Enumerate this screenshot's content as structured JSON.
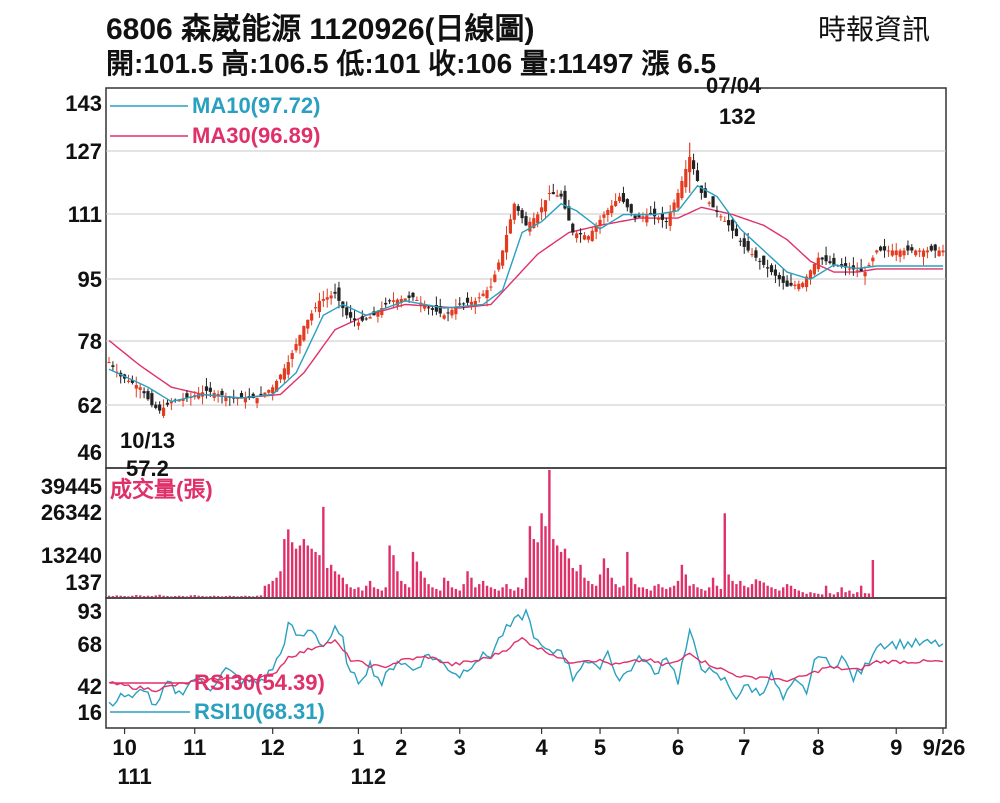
{
  "header": {
    "title": "6806  森崴能源 1120926(日線圖)",
    "source": "時報資訊",
    "ohlc": "開:101.5 高:106.5 低:101 收:106 量:11497 漲 6.5"
  },
  "colors": {
    "ma10": "#2aa0c0",
    "ma30": "#e0306a",
    "up": "#e33b1f",
    "down": "#222222",
    "volume": "#e0306a",
    "rsi10": "#2aa0c0",
    "rsi30": "#e0306a",
    "grid": "#c8c8c8"
  },
  "chart_data": [
    {
      "type": "candlestick",
      "legend": [
        {
          "name": "MA10(97.72)",
          "key": "ma10"
        },
        {
          "name": "MA30(96.89)",
          "key": "ma30"
        }
      ],
      "y_ticks": [
        "143",
        "127",
        "111",
        "95",
        "78",
        "62",
        "46"
      ],
      "ylim": [
        46,
        143
      ],
      "annotations": {
        "high_date": "07/04",
        "high_value": "132",
        "low_date": "10/13",
        "low_value": "57.2"
      },
      "anchors": [
        [
          0,
          71
        ],
        [
          3,
          67
        ],
        [
          8,
          64
        ],
        [
          11,
          59
        ],
        [
          13,
          57.5
        ],
        [
          16,
          60
        ],
        [
          20,
          61
        ],
        [
          25,
          63
        ],
        [
          32,
          61
        ],
        [
          38,
          61
        ],
        [
          42,
          64
        ],
        [
          46,
          71
        ],
        [
          50,
          81
        ],
        [
          54,
          88
        ],
        [
          58,
          90
        ],
        [
          61,
          84
        ],
        [
          64,
          82
        ],
        [
          68,
          84
        ],
        [
          72,
          88
        ],
        [
          78,
          89
        ],
        [
          82,
          86
        ],
        [
          86,
          84
        ],
        [
          90,
          87
        ],
        [
          94,
          88
        ],
        [
          98,
          92
        ],
        [
          101,
          102
        ],
        [
          104,
          115
        ],
        [
          107,
          109
        ],
        [
          110,
          112
        ],
        [
          113,
          118
        ],
        [
          116,
          117
        ],
        [
          119,
          107
        ],
        [
          123,
          106
        ],
        [
          127,
          112
        ],
        [
          131,
          117
        ],
        [
          135,
          111
        ],
        [
          139,
          112
        ],
        [
          143,
          110
        ],
        [
          146,
          118
        ],
        [
          149,
          128
        ],
        [
          152,
          118
        ],
        [
          155,
          114
        ],
        [
          159,
          109
        ],
        [
          163,
          103
        ],
        [
          166,
          100
        ],
        [
          170,
          96
        ],
        [
          174,
          92
        ],
        [
          178,
          93
        ],
        [
          182,
          100
        ],
        [
          186,
          98
        ],
        [
          190,
          97
        ],
        [
          194,
          96
        ],
        [
          197,
          102
        ]
      ],
      "ma10_anchors": [
        [
          0,
          69
        ],
        [
          10,
          64
        ],
        [
          16,
          60
        ],
        [
          24,
          62
        ],
        [
          34,
          61
        ],
        [
          42,
          62
        ],
        [
          48,
          68
        ],
        [
          55,
          84
        ],
        [
          60,
          87
        ],
        [
          66,
          84
        ],
        [
          76,
          88
        ],
        [
          86,
          86
        ],
        [
          96,
          87
        ],
        [
          101,
          91
        ],
        [
          106,
          107
        ],
        [
          111,
          110
        ],
        [
          116,
          115
        ],
        [
          120,
          113
        ],
        [
          126,
          108
        ],
        [
          132,
          112
        ],
        [
          140,
          112
        ],
        [
          146,
          113
        ],
        [
          151,
          120
        ],
        [
          156,
          117
        ],
        [
          162,
          108
        ],
        [
          168,
          102
        ],
        [
          174,
          96
        ],
        [
          180,
          94
        ],
        [
          186,
          98
        ],
        [
          192,
          97
        ],
        [
          197,
          97.7
        ]
      ],
      "ma30_anchors": [
        [
          0,
          77
        ],
        [
          8,
          70
        ],
        [
          16,
          64
        ],
        [
          24,
          62
        ],
        [
          34,
          61
        ],
        [
          44,
          62
        ],
        [
          50,
          68
        ],
        [
          58,
          80
        ],
        [
          66,
          84
        ],
        [
          76,
          87
        ],
        [
          90,
          86
        ],
        [
          98,
          87
        ],
        [
          104,
          94
        ],
        [
          110,
          101
        ],
        [
          118,
          107
        ],
        [
          126,
          109
        ],
        [
          136,
          111
        ],
        [
          146,
          111
        ],
        [
          152,
          114
        ],
        [
          160,
          112
        ],
        [
          168,
          109
        ],
        [
          174,
          105
        ],
        [
          180,
          99
        ],
        [
          186,
          96
        ],
        [
          192,
          96
        ],
        [
          197,
          96.9
        ]
      ]
    },
    {
      "type": "bar",
      "legend": [
        {
          "name": "成交量(張)",
          "key": "volume"
        }
      ],
      "y_ticks": [
        "39445",
        "26342",
        "13240",
        "137"
      ],
      "ylim": [
        137,
        39445
      ],
      "values": [
        400,
        300,
        500,
        400,
        300,
        200,
        400,
        600,
        500,
        300,
        400,
        300,
        500,
        700,
        400,
        300,
        200,
        300,
        400,
        300,
        200,
        500,
        600,
        400,
        300,
        200,
        300,
        400,
        300,
        200,
        300,
        400,
        300,
        200,
        300,
        400,
        300,
        200,
        400,
        500,
        3500,
        4000,
        5000,
        6000,
        8000,
        18000,
        21000,
        17000,
        15000,
        16000,
        18000,
        16000,
        15000,
        14000,
        13000,
        28000,
        9000,
        10000,
        8000,
        7000,
        6000,
        4000,
        3000,
        2500,
        3000,
        2000,
        3500,
        5000,
        3000,
        2500,
        2000,
        3000,
        16000,
        13000,
        8000,
        5000,
        4000,
        3000,
        14000,
        11000,
        8000,
        6000,
        4000,
        3000,
        2500,
        2000,
        6000,
        5000,
        3000,
        2500,
        2000,
        4000,
        8000,
        6000,
        3000,
        4000,
        5000,
        3500,
        3000,
        2500,
        2000,
        3000,
        4000,
        2500,
        2000,
        3000,
        2500,
        6000,
        22000,
        18000,
        17000,
        26000,
        22000,
        39445,
        18000,
        16000,
        14000,
        15000,
        12000,
        9000,
        8000,
        10000,
        6000,
        5000,
        4000,
        3500,
        7000,
        12000,
        9000,
        6000,
        4000,
        3000,
        3500,
        14000,
        6000,
        4000,
        3000,
        3000,
        2500,
        2000,
        3500,
        4000,
        3000,
        2500,
        3000,
        3500,
        5000,
        10000,
        7000,
        3500,
        4000,
        3000,
        2500,
        2000,
        3000,
        6000,
        3500,
        2500,
        26000,
        7000,
        5000,
        4000,
        5000,
        3500,
        3000,
        4000,
        5500,
        5000,
        4500,
        3500,
        3000,
        2500,
        2000,
        3000,
        4000,
        3500,
        2500,
        2000,
        1500,
        1000,
        1500,
        1200,
        1000,
        800,
        3500,
        1200,
        800,
        1500,
        3000,
        1500,
        2000,
        1000,
        1500,
        3500,
        1200,
        1100,
        11497
      ]
    },
    {
      "type": "line",
      "legend": [
        {
          "name": "RSI30(54.39)",
          "key": "rsi30"
        },
        {
          "name": "RSI10(68.31)",
          "key": "rsi10"
        }
      ],
      "y_ticks": [
        "93",
        "68",
        "42",
        "16"
      ],
      "ylim": [
        16,
        93
      ],
      "rsi10_anchors": [
        [
          0,
          20
        ],
        [
          3,
          30
        ],
        [
          6,
          25
        ],
        [
          9,
          35
        ],
        [
          12,
          18
        ],
        [
          15,
          38
        ],
        [
          18,
          30
        ],
        [
          22,
          42
        ],
        [
          26,
          35
        ],
        [
          30,
          48
        ],
        [
          34,
          40
        ],
        [
          38,
          38
        ],
        [
          41,
          45
        ],
        [
          44,
          60
        ],
        [
          46,
          82
        ],
        [
          49,
          72
        ],
        [
          52,
          80
        ],
        [
          55,
          66
        ],
        [
          58,
          78
        ],
        [
          60,
          70
        ],
        [
          62,
          44
        ],
        [
          64,
          40
        ],
        [
          67,
          52
        ],
        [
          70,
          38
        ],
        [
          74,
          56
        ],
        [
          78,
          48
        ],
        [
          82,
          60
        ],
        [
          86,
          52
        ],
        [
          90,
          44
        ],
        [
          94,
          56
        ],
        [
          98,
          60
        ],
        [
          101,
          76
        ],
        [
          104,
          84
        ],
        [
          107,
          92
        ],
        [
          110,
          68
        ],
        [
          113,
          60
        ],
        [
          116,
          65
        ],
        [
          119,
          42
        ],
        [
          122,
          56
        ],
        [
          125,
          48
        ],
        [
          128,
          62
        ],
        [
          131,
          40
        ],
        [
          134,
          50
        ],
        [
          137,
          58
        ],
        [
          140,
          44
        ],
        [
          143,
          60
        ],
        [
          146,
          40
        ],
        [
          149,
          75
        ],
        [
          152,
          52
        ],
        [
          155,
          44
        ],
        [
          158,
          40
        ],
        [
          161,
          28
        ],
        [
          164,
          36
        ],
        [
          167,
          30
        ],
        [
          170,
          44
        ],
        [
          173,
          25
        ],
        [
          176,
          38
        ],
        [
          179,
          32
        ],
        [
          182,
          62
        ],
        [
          185,
          50
        ],
        [
          188,
          58
        ],
        [
          191,
          42
        ],
        [
          194,
          50
        ],
        [
          197,
          68
        ]
      ],
      "rsi30_anchors": [
        [
          0,
          38
        ],
        [
          6,
          35
        ],
        [
          12,
          33
        ],
        [
          18,
          37
        ],
        [
          24,
          40
        ],
        [
          30,
          42
        ],
        [
          36,
          41
        ],
        [
          42,
          44
        ],
        [
          46,
          58
        ],
        [
          50,
          62
        ],
        [
          54,
          67
        ],
        [
          58,
          70
        ],
        [
          62,
          56
        ],
        [
          66,
          52
        ],
        [
          70,
          50
        ],
        [
          76,
          56
        ],
        [
          82,
          58
        ],
        [
          88,
          52
        ],
        [
          94,
          55
        ],
        [
          98,
          58
        ],
        [
          102,
          64
        ],
        [
          106,
          72
        ],
        [
          110,
          65
        ],
        [
          114,
          60
        ],
        [
          118,
          54
        ],
        [
          122,
          56
        ],
        [
          126,
          55
        ],
        [
          130,
          52
        ],
        [
          134,
          54
        ],
        [
          138,
          56
        ],
        [
          142,
          52
        ],
        [
          146,
          54
        ],
        [
          149,
          62
        ],
        [
          152,
          55
        ],
        [
          156,
          50
        ],
        [
          160,
          45
        ],
        [
          164,
          42
        ],
        [
          168,
          43
        ],
        [
          172,
          40
        ],
        [
          176,
          41
        ],
        [
          180,
          45
        ],
        [
          184,
          50
        ],
        [
          188,
          49
        ],
        [
          192,
          48
        ],
        [
          197,
          54.4
        ]
      ]
    }
  ],
  "x_axis": {
    "month_labels": [
      {
        "label": "10",
        "index": 4
      },
      {
        "label": "11",
        "index": 22
      },
      {
        "label": "12",
        "index": 42
      },
      {
        "label": "1",
        "index": 64
      },
      {
        "label": "2",
        "index": 75
      },
      {
        "label": "3",
        "index": 90
      },
      {
        "label": "4",
        "index": 111
      },
      {
        "label": "5",
        "index": 126
      },
      {
        "label": "6",
        "index": 146
      },
      {
        "label": "7",
        "index": 163
      },
      {
        "label": "8",
        "index": 182
      },
      {
        "label": "9",
        "index": 202
      },
      {
        "label": "9/26",
        "index": 214
      }
    ],
    "year_labels": [
      {
        "label": "111",
        "index": 4
      },
      {
        "label": "112",
        "index": 64
      }
    ]
  }
}
